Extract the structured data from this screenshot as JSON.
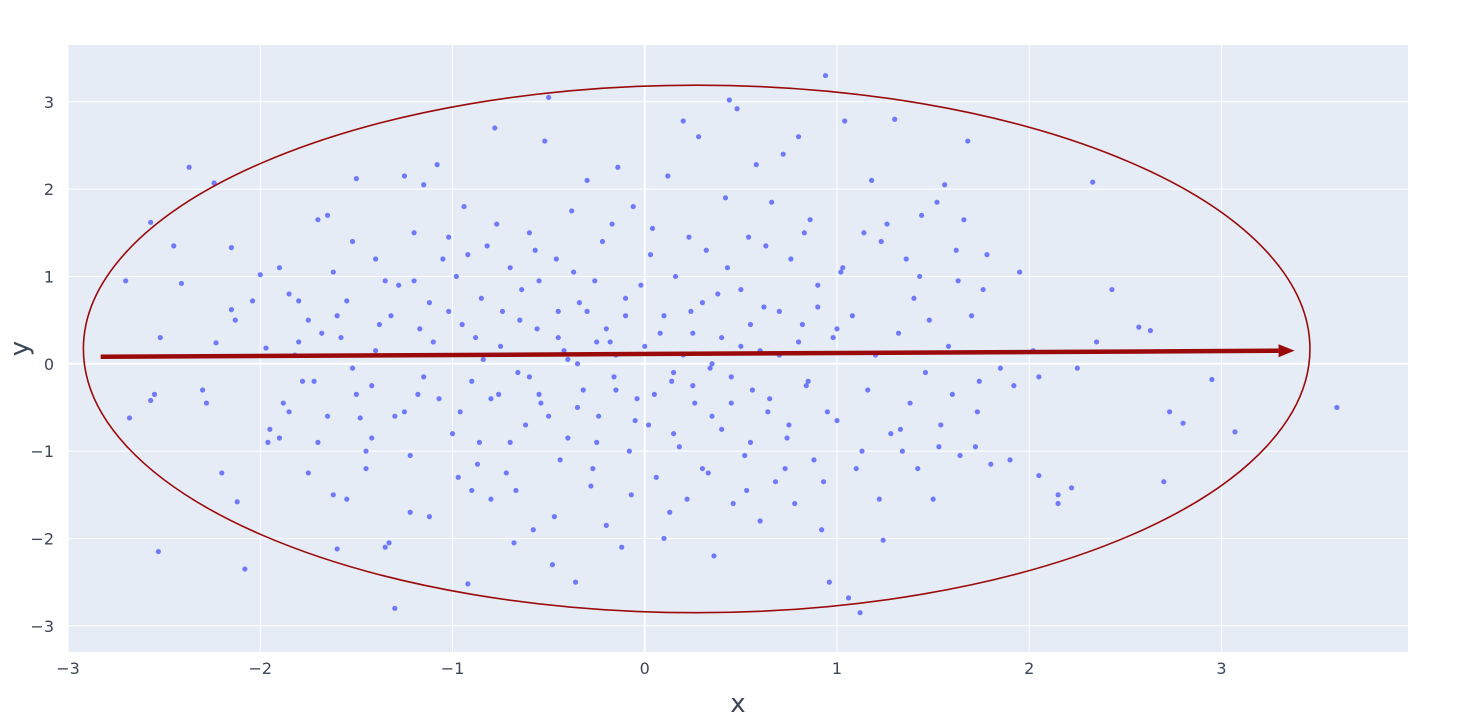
{
  "chart_data": {
    "type": "scatter",
    "title": "",
    "xlabel": "x",
    "ylabel": "y",
    "xlim": [
      -3.0,
      3.97
    ],
    "ylim": [
      -3.3,
      3.65
    ],
    "x_ticks": [
      -3,
      -2,
      -1,
      0,
      1,
      2,
      3
    ],
    "y_ticks": [
      -3,
      -2,
      -1,
      0,
      1,
      2,
      3
    ],
    "x_tick_labels": [
      "−3",
      "−2",
      "−1",
      "0",
      "1",
      "2",
      "3"
    ],
    "y_tick_labels": [
      "−3",
      "−2",
      "−1",
      "0",
      "1",
      "2",
      "3"
    ],
    "grid": true,
    "legend": "none",
    "background_color": "#e5ecf6",
    "point_color": "#636efa",
    "annotation_color": "#9b0a0a",
    "points": [
      [
        -2.7,
        0.95
      ],
      [
        -2.55,
        -0.35
      ],
      [
        -2.52,
        0.3
      ],
      [
        -2.57,
        -0.42
      ],
      [
        -2.57,
        1.62
      ],
      [
        -2.53,
        -2.15
      ],
      [
        -2.45,
        1.35
      ],
      [
        -2.41,
        0.92
      ],
      [
        -2.37,
        2.25
      ],
      [
        -2.3,
        -0.3
      ],
      [
        -2.28,
        -0.45
      ],
      [
        -2.24,
        2.07
      ],
      [
        -2.2,
        -1.25
      ],
      [
        -2.15,
        0.62
      ],
      [
        -2.13,
        0.5
      ],
      [
        -2.12,
        -1.58
      ],
      [
        -2.08,
        -2.35
      ],
      [
        -2.04,
        0.72
      ],
      [
        -2.0,
        1.02
      ],
      [
        -1.97,
        0.18
      ],
      [
        -1.96,
        -0.9
      ],
      [
        -2.68,
        -0.62
      ],
      [
        -2.23,
        0.24
      ],
      [
        -2.15,
        1.33
      ],
      [
        -1.9,
        1.1
      ],
      [
        -1.88,
        -0.45
      ],
      [
        -1.85,
        -0.55
      ],
      [
        -1.85,
        0.8
      ],
      [
        -1.8,
        0.72
      ],
      [
        -1.75,
        0.5
      ],
      [
        -1.72,
        -0.2
      ],
      [
        -1.7,
        1.65
      ],
      [
        -1.68,
        0.35
      ],
      [
        -1.65,
        1.7
      ],
      [
        -1.62,
        -1.5
      ],
      [
        -1.6,
        -2.12
      ],
      [
        -1.58,
        0.3
      ],
      [
        -1.55,
        0.72
      ],
      [
        -1.52,
        1.4
      ],
      [
        -1.5,
        2.12
      ],
      [
        -1.48,
        -0.62
      ],
      [
        -1.45,
        -1.0
      ],
      [
        -1.42,
        -0.25
      ],
      [
        -1.4,
        1.2
      ],
      [
        -1.38,
        0.45
      ],
      [
        -1.35,
        -2.1
      ],
      [
        -1.33,
        -2.05
      ],
      [
        -1.3,
        -2.8
      ],
      [
        -1.28,
        0.9
      ],
      [
        -1.25,
        2.15
      ],
      [
        -1.22,
        -1.7
      ],
      [
        -1.2,
        1.5
      ],
      [
        -1.18,
        -0.35
      ],
      [
        -1.15,
        2.05
      ],
      [
        -1.12,
        -1.75
      ],
      [
        -1.1,
        0.25
      ],
      [
        -1.08,
        2.28
      ],
      [
        -1.05,
        1.2
      ],
      [
        -1.02,
        0.6
      ],
      [
        -1.0,
        -0.8
      ],
      [
        -1.95,
        -0.75
      ],
      [
        -1.9,
        -0.85
      ],
      [
        -1.82,
        0.1
      ],
      [
        -1.78,
        -0.2
      ],
      [
        -1.65,
        -0.6
      ],
      [
        -1.55,
        -1.55
      ],
      [
        -1.45,
        -1.2
      ],
      [
        -1.35,
        0.95
      ],
      [
        -1.25,
        -0.55
      ],
      [
        -1.15,
        -0.15
      ],
      [
        -0.98,
        1.0
      ],
      [
        -0.96,
        -0.55
      ],
      [
        -0.94,
        1.8
      ],
      [
        -0.92,
        -2.52
      ],
      [
        -0.9,
        -1.45
      ],
      [
        -0.88,
        0.3
      ],
      [
        -0.86,
        -0.9
      ],
      [
        -0.84,
        0.05
      ],
      [
        -0.82,
        1.35
      ],
      [
        -0.8,
        -1.55
      ],
      [
        -0.78,
        2.7
      ],
      [
        -0.76,
        -0.35
      ],
      [
        -0.74,
        0.6
      ],
      [
        -0.72,
        -1.25
      ],
      [
        -0.7,
        1.1
      ],
      [
        -0.68,
        -2.05
      ],
      [
        -0.66,
        -0.1
      ],
      [
        -0.64,
        0.85
      ],
      [
        -0.62,
        -0.7
      ],
      [
        -0.6,
        1.5
      ],
      [
        -0.58,
        -1.9
      ],
      [
        -0.56,
        0.4
      ],
      [
        -0.54,
        -0.45
      ],
      [
        -0.52,
        2.55
      ],
      [
        -0.5,
        3.05
      ],
      [
        -0.48,
        -2.3
      ],
      [
        -0.46,
        1.2
      ],
      [
        -0.44,
        -1.1
      ],
      [
        -0.42,
        0.15
      ],
      [
        -0.4,
        -0.85
      ],
      [
        -0.38,
        1.75
      ],
      [
        -0.36,
        -2.5
      ],
      [
        -0.34,
        0.7
      ],
      [
        -0.32,
        -0.3
      ],
      [
        -0.3,
        2.1
      ],
      [
        -0.28,
        -1.4
      ],
      [
        -0.26,
        0.95
      ],
      [
        -0.24,
        -0.6
      ],
      [
        -0.22,
        1.4
      ],
      [
        -0.2,
        -1.85
      ],
      [
        -0.18,
        0.25
      ],
      [
        -0.16,
        -0.15
      ],
      [
        -0.14,
        2.25
      ],
      [
        -0.12,
        -2.1
      ],
      [
        -0.1,
        0.55
      ],
      [
        -0.08,
        -1.0
      ],
      [
        -0.06,
        1.8
      ],
      [
        -0.04,
        -0.4
      ],
      [
        -0.02,
        0.9
      ],
      [
        0.02,
        -0.7
      ],
      [
        0.04,
        1.55
      ],
      [
        0.06,
        -1.3
      ],
      [
        0.08,
        0.35
      ],
      [
        0.1,
        -2.0
      ],
      [
        0.12,
        2.15
      ],
      [
        0.14,
        -0.2
      ],
      [
        0.16,
        1.0
      ],
      [
        0.18,
        -0.95
      ],
      [
        0.2,
        2.78
      ],
      [
        0.22,
        -1.55
      ],
      [
        0.24,
        0.6
      ],
      [
        0.26,
        -0.45
      ],
      [
        0.28,
        2.6
      ],
      [
        0.3,
        -1.2
      ],
      [
        0.32,
        1.3
      ],
      [
        0.34,
        -0.05
      ],
      [
        0.36,
        -2.2
      ],
      [
        0.38,
        0.8
      ],
      [
        0.4,
        -0.75
      ],
      [
        0.42,
        1.9
      ],
      [
        0.44,
        3.02
      ],
      [
        0.46,
        -1.6
      ],
      [
        0.48,
        2.92
      ],
      [
        0.5,
        0.2
      ],
      [
        0.52,
        -1.05
      ],
      [
        0.54,
        1.45
      ],
      [
        0.56,
        -0.3
      ],
      [
        0.58,
        2.28
      ],
      [
        0.6,
        -1.8
      ],
      [
        0.62,
        0.65
      ],
      [
        0.64,
        -0.55
      ],
      [
        0.66,
        1.85
      ],
      [
        0.68,
        -1.35
      ],
      [
        0.7,
        0.1
      ],
      [
        0.72,
        2.4
      ],
      [
        0.74,
        -0.85
      ],
      [
        0.76,
        1.2
      ],
      [
        0.78,
        -1.6
      ],
      [
        0.8,
        2.6
      ],
      [
        0.82,
        0.45
      ],
      [
        0.84,
        -0.25
      ],
      [
        0.86,
        1.65
      ],
      [
        0.88,
        -1.1
      ],
      [
        0.9,
        0.9
      ],
      [
        0.92,
        -1.9
      ],
      [
        0.94,
        3.3
      ],
      [
        0.96,
        -2.5
      ],
      [
        0.98,
        0.3
      ],
      [
        1.0,
        -0.65
      ],
      [
        1.02,
        1.05
      ],
      [
        1.04,
        2.78
      ],
      [
        1.06,
        -2.68
      ],
      [
        1.08,
        0.55
      ],
      [
        1.1,
        -1.2
      ],
      [
        1.12,
        -2.85
      ],
      [
        1.14,
        1.5
      ],
      [
        1.16,
        -0.3
      ],
      [
        1.18,
        2.1
      ],
      [
        1.2,
        0.1
      ],
      [
        1.22,
        -1.55
      ],
      [
        1.24,
        -2.02
      ],
      [
        1.26,
        1.6
      ],
      [
        1.28,
        -0.8
      ],
      [
        1.3,
        2.8
      ],
      [
        1.32,
        0.35
      ],
      [
        1.34,
        -1.0
      ],
      [
        1.36,
        1.2
      ],
      [
        1.38,
        -0.45
      ],
      [
        1.4,
        0.75
      ],
      [
        1.42,
        -1.2
      ],
      [
        1.44,
        1.7
      ],
      [
        1.46,
        -0.1
      ],
      [
        1.48,
        0.5
      ],
      [
        1.5,
        -1.55
      ],
      [
        1.52,
        1.85
      ],
      [
        1.54,
        -0.7
      ],
      [
        1.56,
        2.05
      ],
      [
        1.58,
        0.2
      ],
      [
        1.6,
        -0.35
      ],
      [
        1.62,
        1.3
      ],
      [
        1.64,
        -1.05
      ],
      [
        1.66,
        1.65
      ],
      [
        1.68,
        2.55
      ],
      [
        1.7,
        0.55
      ],
      [
        1.72,
        -0.95
      ],
      [
        1.74,
        -0.2
      ],
      [
        1.76,
        0.85
      ],
      [
        1.78,
        1.25
      ],
      [
        1.8,
        -1.15
      ],
      [
        1.85,
        -0.05
      ],
      [
        1.9,
        -1.1
      ],
      [
        1.92,
        -0.25
      ],
      [
        1.95,
        1.05
      ],
      [
        2.02,
        0.15
      ],
      [
        2.05,
        -0.15
      ],
      [
        2.05,
        -1.28
      ],
      [
        2.15,
        -1.5
      ],
      [
        2.15,
        -1.6
      ],
      [
        2.22,
        -1.42
      ],
      [
        2.25,
        -0.05
      ],
      [
        2.33,
        2.08
      ],
      [
        2.35,
        0.25
      ],
      [
        2.43,
        0.85
      ],
      [
        2.57,
        0.42
      ],
      [
        2.63,
        0.38
      ],
      [
        2.7,
        -1.35
      ],
      [
        2.73,
        -0.55
      ],
      [
        2.8,
        -0.68
      ],
      [
        2.95,
        -0.18
      ],
      [
        3.07,
        -0.78
      ],
      [
        3.6,
        -0.5
      ],
      [
        -0.95,
        0.45
      ],
      [
        -0.9,
        -0.2
      ],
      [
        -0.85,
        0.75
      ],
      [
        -0.8,
        -0.4
      ],
      [
        -0.75,
        0.2
      ],
      [
        -0.7,
        -0.9
      ],
      [
        -0.65,
        0.5
      ],
      [
        -0.6,
        -0.15
      ],
      [
        -0.55,
        0.95
      ],
      [
        -0.5,
        -0.6
      ],
      [
        -0.45,
        0.3
      ],
      [
        -0.4,
        0.05
      ],
      [
        -0.35,
        -0.5
      ],
      [
        -0.3,
        0.6
      ],
      [
        -0.25,
        -0.9
      ],
      [
        -0.2,
        0.4
      ],
      [
        -0.15,
        -0.3
      ],
      [
        -0.1,
        0.75
      ],
      [
        -0.05,
        -0.65
      ],
      [
        0.0,
        0.2
      ],
      [
        0.05,
        -0.35
      ],
      [
        0.1,
        0.55
      ],
      [
        0.15,
        -0.8
      ],
      [
        0.2,
        0.1
      ],
      [
        0.25,
        -0.25
      ],
      [
        0.3,
        0.7
      ],
      [
        0.35,
        -0.6
      ],
      [
        0.4,
        0.3
      ],
      [
        0.45,
        -0.15
      ],
      [
        0.5,
        0.85
      ],
      [
        0.55,
        -0.9
      ],
      [
        0.6,
        0.15
      ],
      [
        0.65,
        -0.4
      ],
      [
        0.7,
        0.6
      ],
      [
        0.75,
        -0.7
      ],
      [
        0.8,
        0.25
      ],
      [
        0.85,
        -0.2
      ],
      [
        0.9,
        0.65
      ],
      [
        0.95,
        -0.55
      ],
      [
        1.0,
        0.4
      ],
      [
        -0.92,
        1.25
      ],
      [
        -0.87,
        -1.15
      ],
      [
        -0.77,
        1.6
      ],
      [
        -0.67,
        -1.45
      ],
      [
        -0.57,
        1.3
      ],
      [
        -0.47,
        -1.75
      ],
      [
        -0.37,
        1.05
      ],
      [
        -0.27,
        -1.2
      ],
      [
        -0.17,
        1.6
      ],
      [
        -0.07,
        -1.5
      ],
      [
        0.03,
        1.25
      ],
      [
        0.13,
        -1.7
      ],
      [
        0.23,
        1.45
      ],
      [
        0.33,
        -1.25
      ],
      [
        0.43,
        1.1
      ],
      [
        0.53,
        -1.45
      ],
      [
        0.63,
        1.35
      ],
      [
        0.73,
        -1.2
      ],
      [
        0.83,
        1.5
      ],
      [
        0.93,
        -1.35
      ],
      [
        1.03,
        1.1
      ],
      [
        1.13,
        -1.0
      ],
      [
        1.23,
        1.4
      ],
      [
        1.33,
        -0.75
      ],
      [
        1.43,
        1.0
      ],
      [
        1.53,
        -0.95
      ],
      [
        1.63,
        0.95
      ],
      [
        1.73,
        -0.55
      ],
      [
        -1.12,
        0.7
      ],
      [
        -1.07,
        -0.4
      ],
      [
        -1.02,
        1.45
      ],
      [
        -0.97,
        -1.3
      ],
      [
        -1.2,
        0.95
      ],
      [
        -1.3,
        -0.6
      ],
      [
        -1.4,
        0.15
      ],
      [
        -1.5,
        -0.35
      ],
      [
        -1.6,
        0.55
      ],
      [
        -1.7,
        -0.9
      ],
      [
        -1.8,
        0.25
      ],
      [
        -1.75,
        -1.25
      ],
      [
        -1.62,
        1.05
      ],
      [
        -1.52,
        -0.05
      ],
      [
        -1.42,
        -0.85
      ],
      [
        -1.32,
        0.55
      ],
      [
        -1.22,
        -1.05
      ],
      [
        -1.17,
        0.4
      ],
      [
        -0.35,
        0.0
      ],
      [
        0.35,
        0.0
      ],
      [
        -0.15,
        0.1
      ],
      [
        0.15,
        -0.1
      ],
      [
        0.55,
        0.45
      ],
      [
        -0.55,
        -0.35
      ],
      [
        0.25,
        0.35
      ],
      [
        -0.25,
        0.25
      ],
      [
        0.45,
        -0.45
      ],
      [
        -0.45,
        0.6
      ]
    ],
    "ellipse": {
      "cx": 0.27,
      "cy": 0.17,
      "rx": 3.19,
      "ry": 3.02
    },
    "arrow": {
      "x0": -2.83,
      "y0": 0.08,
      "x1": 3.38,
      "y1": 0.15
    }
  }
}
